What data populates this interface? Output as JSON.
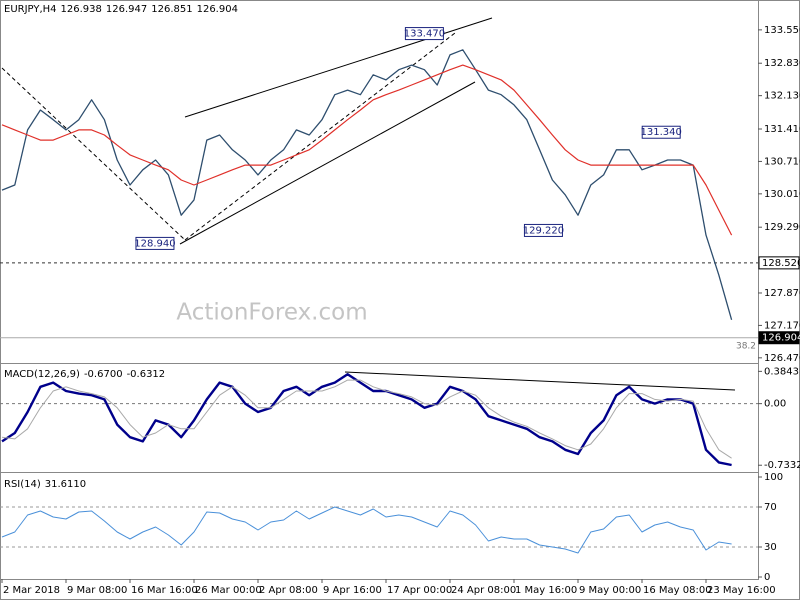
{
  "chart_data": [
    {
      "type": "line",
      "title": "EURJPY,H4",
      "ohlc": [
        126.938,
        126.947,
        126.851,
        126.904
      ],
      "watermark": "ActionForex.com",
      "fib_label": "38.2",
      "xlim": [
        0,
        58
      ],
      "ylim": [
        126.38,
        134.13
      ],
      "yticks": [
        {
          "value": 133.55,
          "label": "133.550"
        },
        {
          "value": 132.83,
          "label": "132.830"
        },
        {
          "value": 132.13,
          "label": "132.130"
        },
        {
          "value": 131.41,
          "label": "131.410"
        },
        {
          "value": 130.71,
          "label": "130.710"
        },
        {
          "value": 130.01,
          "label": "130.010"
        },
        {
          "value": 129.29,
          "label": "129.290"
        },
        {
          "value": 127.87,
          "label": "127.870"
        },
        {
          "value": 127.17,
          "label": "127.170"
        },
        {
          "value": 126.47,
          "label": "126.470"
        }
      ],
      "price_lines": [
        {
          "value": 128.52,
          "label": "128.520",
          "style": "dashed"
        },
        {
          "value": 126.904,
          "label": "126.904",
          "style": "current"
        }
      ],
      "annotations": [
        {
          "x": 33.0,
          "value": 133.47,
          "label": "133.470"
        },
        {
          "x": 11.95,
          "value": 128.94,
          "label": "128.940"
        },
        {
          "x": 42.3,
          "value": 129.22,
          "label": "129.220"
        },
        {
          "x": 51.5,
          "value": 131.34,
          "label": "131.340"
        }
      ],
      "series": [
        {
          "color": "#2e4e6e",
          "width": 1.3,
          "values": [
            130.09,
            130.2,
            131.39,
            131.82,
            131.61,
            131.39,
            131.61,
            132.04,
            131.61,
            130.74,
            130.2,
            130.53,
            130.74,
            130.42,
            129.55,
            129.88,
            131.17,
            131.28,
            130.96,
            130.74,
            130.42,
            130.74,
            130.96,
            131.39,
            131.28,
            131.61,
            132.15,
            132.25,
            132.15,
            132.58,
            132.47,
            132.69,
            132.79,
            132.69,
            132.36,
            133.01,
            133.12,
            132.69,
            132.25,
            132.15,
            131.93,
            131.61,
            130.96,
            130.31,
            129.99,
            129.55,
            130.2,
            130.42,
            130.96,
            130.96,
            130.53,
            130.63,
            130.74,
            130.74,
            130.63,
            129.12,
            128.26,
            127.29
          ]
        },
        {
          "color": "#e0302a",
          "width": 1.2,
          "values": [
            131.5,
            131.39,
            131.28,
            131.17,
            131.17,
            131.28,
            131.39,
            131.39,
            131.28,
            131.06,
            130.85,
            130.74,
            130.63,
            130.53,
            130.31,
            130.2,
            130.31,
            130.42,
            130.53,
            130.63,
            130.63,
            130.63,
            130.74,
            130.85,
            130.96,
            131.17,
            131.39,
            131.61,
            131.82,
            132.04,
            132.15,
            132.25,
            132.36,
            132.47,
            132.58,
            132.69,
            132.79,
            132.69,
            132.58,
            132.47,
            132.25,
            131.93,
            131.61,
            131.28,
            130.96,
            130.74,
            130.63,
            130.63,
            130.63,
            130.63,
            130.63,
            130.63,
            130.63,
            130.63,
            130.63,
            130.2,
            129.66,
            129.12
          ]
        }
      ]
    },
    {
      "type": "line",
      "title": "MACD(12,26,9)",
      "readouts": [
        {
          "value": -0.67,
          "label": "-0.6700"
        },
        {
          "value": -0.6312,
          "label": "-0.6312"
        }
      ],
      "xlim": [
        0,
        58
      ],
      "ylim": [
        -0.79,
        0.46
      ],
      "yticks": [
        0.3843,
        {
          "value": 0,
          "label": "0.00"
        },
        -0.7332
      ],
      "zero_line": true,
      "series": [
        {
          "color": "#00008b",
          "width": 2.4,
          "values": [
            -0.45,
            -0.35,
            -0.1,
            0.2,
            0.25,
            0.15,
            0.12,
            0.1,
            0.05,
            -0.25,
            -0.4,
            -0.45,
            -0.2,
            -0.25,
            -0.4,
            -0.2,
            0.05,
            0.25,
            0.2,
            0.0,
            -0.1,
            -0.05,
            0.15,
            0.2,
            0.1,
            0.2,
            0.25,
            0.35,
            0.25,
            0.15,
            0.15,
            0.1,
            0.05,
            -0.05,
            0.0,
            0.2,
            0.15,
            0.05,
            -0.15,
            -0.2,
            -0.25,
            -0.3,
            -0.4,
            -0.45,
            -0.55,
            -0.6,
            -0.35,
            -0.2,
            0.1,
            0.2,
            0.05,
            0.0,
            0.05,
            0.05,
            0.0,
            -0.55,
            -0.7,
            -0.73
          ]
        },
        {
          "color": "#a9a9a9",
          "width": 1,
          "values": [
            -0.4,
            -0.42,
            -0.3,
            -0.05,
            0.15,
            0.2,
            0.15,
            0.12,
            0.08,
            -0.05,
            -0.25,
            -0.4,
            -0.35,
            -0.25,
            -0.3,
            -0.3,
            -0.1,
            0.1,
            0.2,
            0.1,
            -0.05,
            -0.05,
            0.05,
            0.15,
            0.15,
            0.15,
            0.2,
            0.28,
            0.28,
            0.2,
            0.15,
            0.12,
            0.08,
            0.0,
            -0.02,
            0.08,
            0.15,
            0.1,
            -0.05,
            -0.15,
            -0.22,
            -0.27,
            -0.35,
            -0.42,
            -0.5,
            -0.55,
            -0.48,
            -0.3,
            -0.05,
            0.12,
            0.12,
            0.05,
            0.03,
            0.05,
            0.03,
            -0.3,
            -0.55,
            -0.65
          ]
        }
      ]
    },
    {
      "type": "line",
      "title": "RSI(14)",
      "readouts": [
        {
          "value": 31.611,
          "label": "31.6110"
        }
      ],
      "xlim": [
        0,
        58
      ],
      "ylim": [
        0,
        100
      ],
      "yticks": [
        100,
        70,
        30,
        0
      ],
      "levels": [
        70,
        30
      ],
      "xticks": [
        {
          "value": 0,
          "label": "2 Mar 2018"
        },
        {
          "value": 5,
          "label": "9 Mar 08:00"
        },
        {
          "value": 10,
          "label": "16 Mar 16:00"
        },
        {
          "value": 15,
          "label": "26 Mar 00:00"
        },
        {
          "value": 20,
          "label": "2 Apr 08:00"
        },
        {
          "value": 25,
          "label": "9 Apr 16:00"
        },
        {
          "value": 30,
          "label": "17 Apr 00:00"
        },
        {
          "value": 35,
          "label": "24 Apr 08:00"
        },
        {
          "value": 40,
          "label": "1 May 16:00"
        },
        {
          "value": 45,
          "label": "9 May 00:00"
        },
        {
          "value": 50,
          "label": "16 May 08:00"
        },
        {
          "value": 55,
          "label": "23 May 16:00"
        }
      ],
      "series": [
        {
          "color": "#4a90d9",
          "width": 1,
          "values": [
            40,
            45,
            62,
            66,
            60,
            58,
            65,
            66,
            56,
            45,
            38,
            45,
            50,
            42,
            32,
            45,
            65,
            64,
            58,
            55,
            47,
            55,
            57,
            66,
            58,
            64,
            70,
            66,
            62,
            68,
            60,
            62,
            60,
            55,
            50,
            66,
            62,
            52,
            36,
            40,
            38,
            38,
            32,
            30,
            28,
            24,
            45,
            48,
            60,
            62,
            45,
            52,
            55,
            50,
            47,
            27,
            35,
            33
          ]
        }
      ]
    }
  ]
}
